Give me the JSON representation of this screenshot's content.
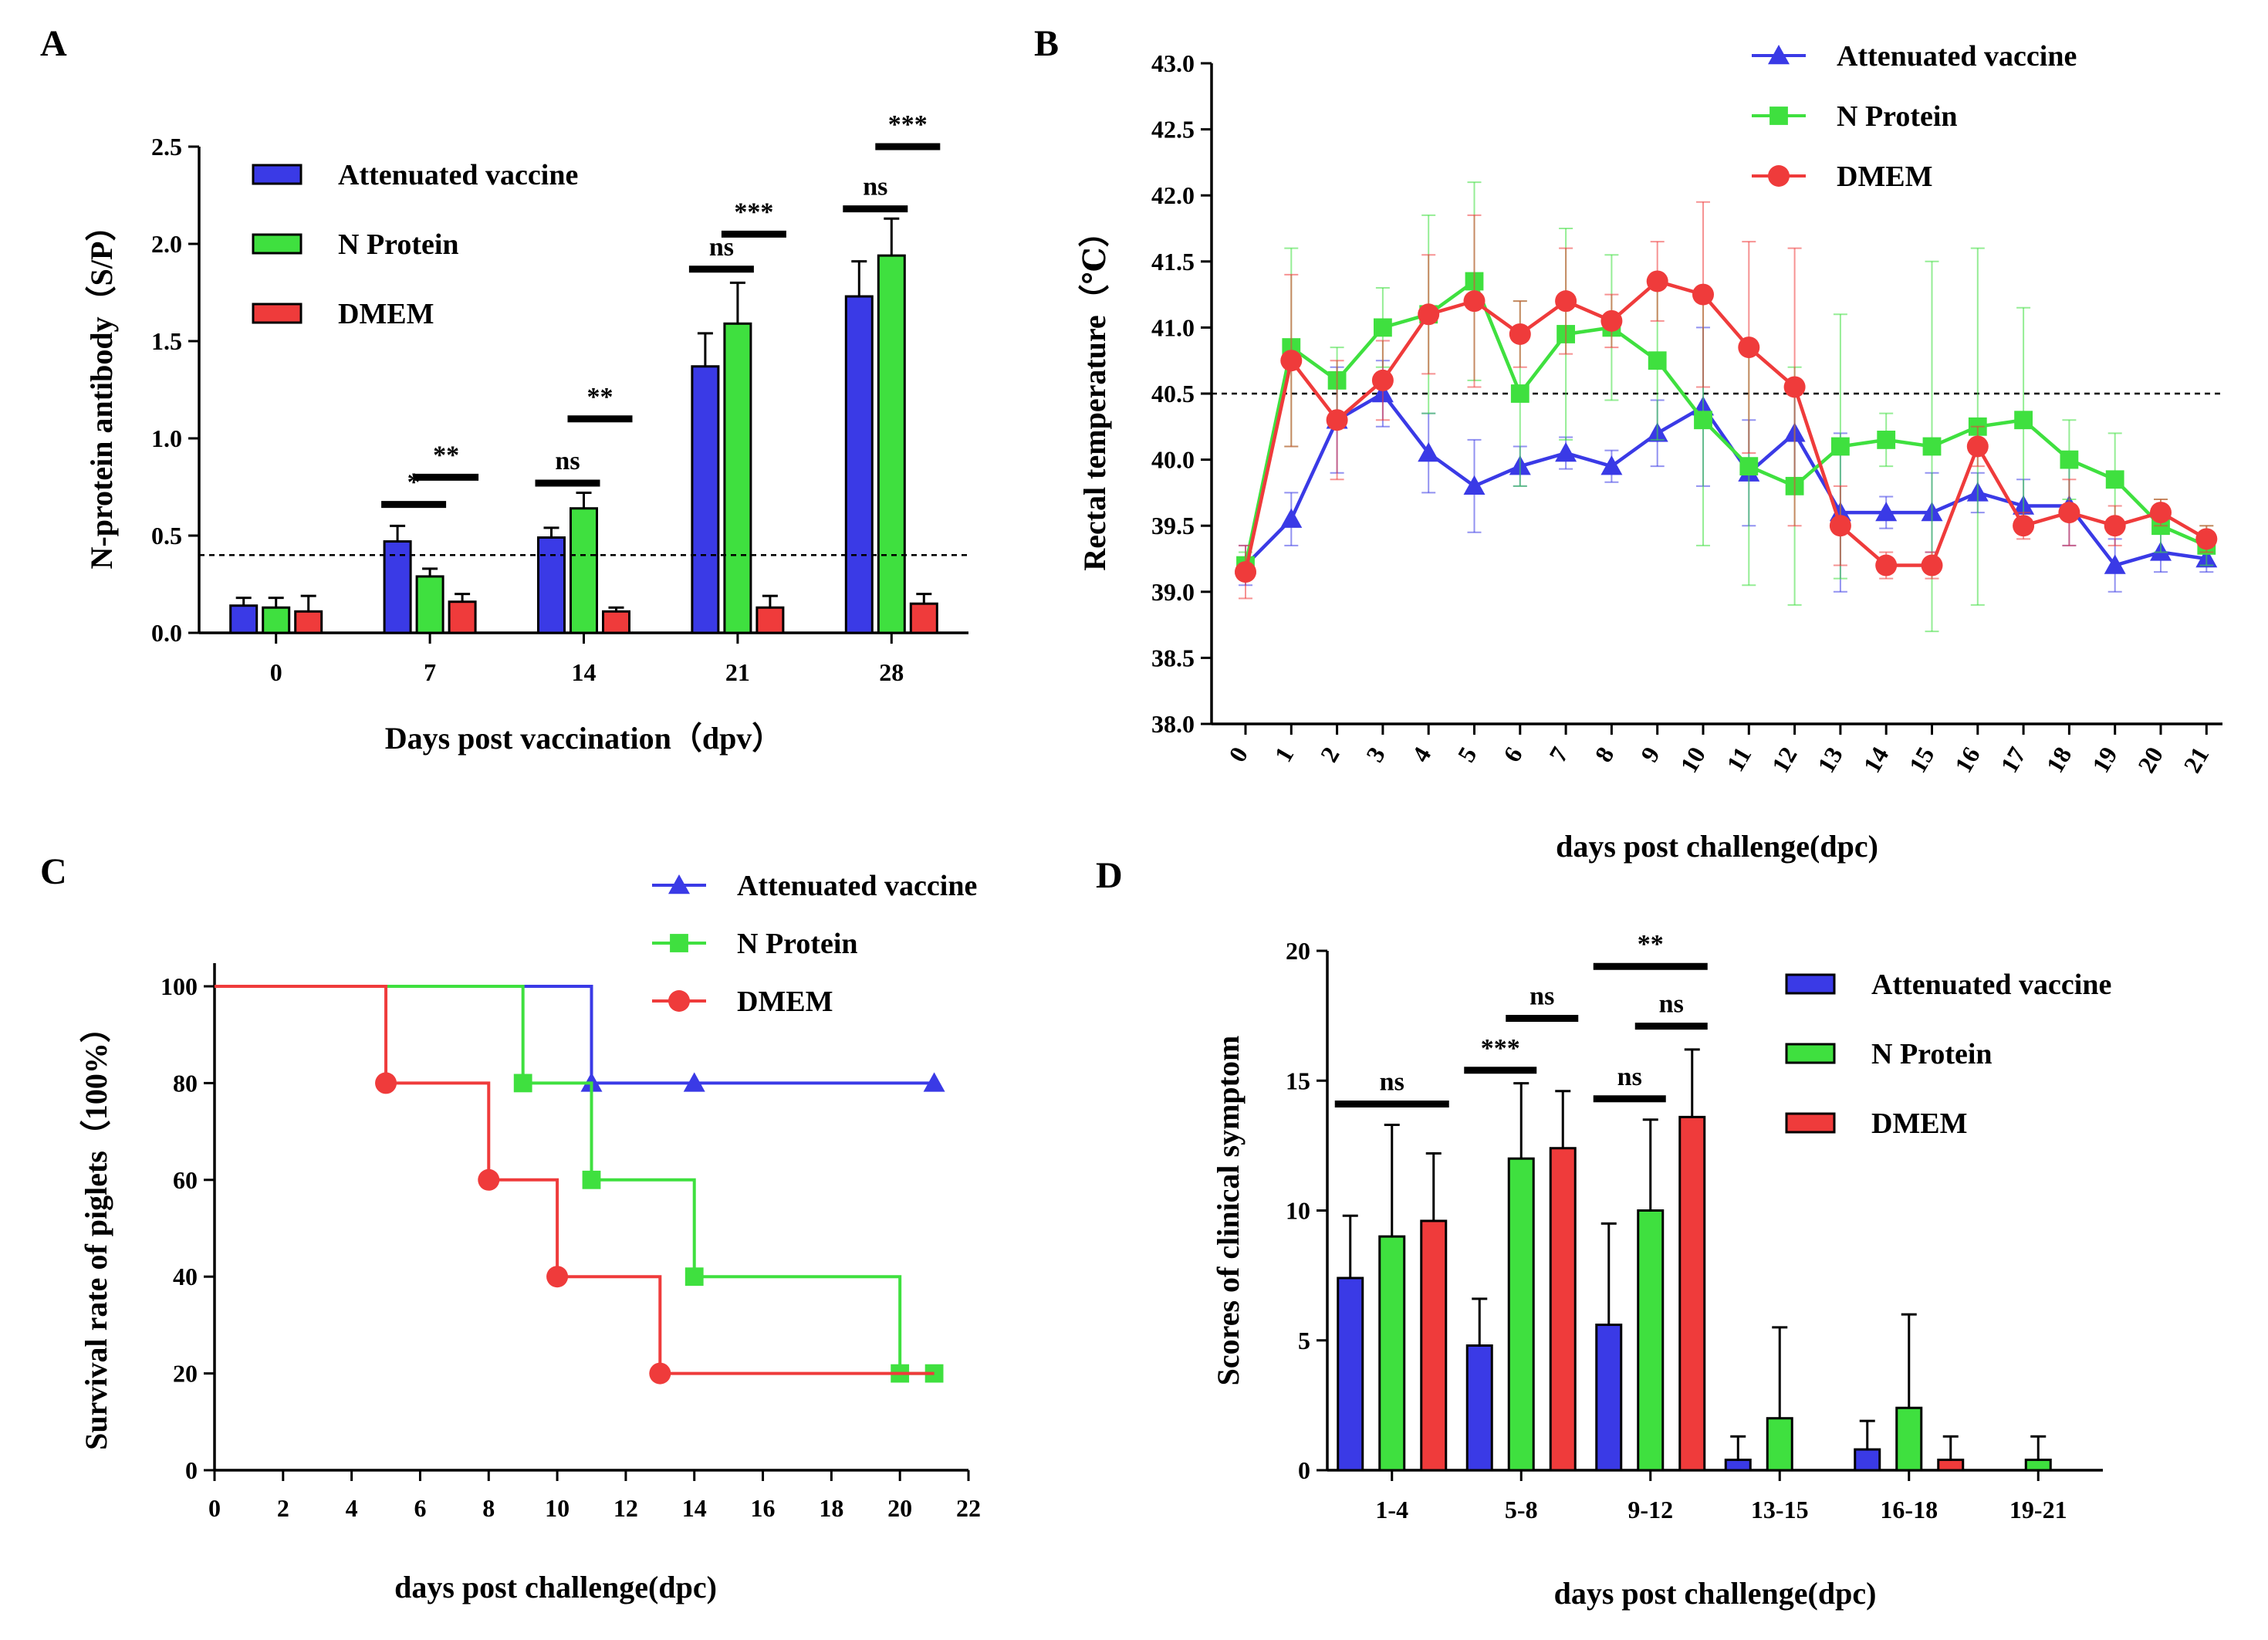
{
  "colors": {
    "vaccine": "#3a3ae6",
    "nprotein": "#3fe03f",
    "dmem": "#ef3b3b",
    "axis": "#000000"
  },
  "series_names": [
    "Attenuated vaccine",
    "N Protein",
    "DMEM"
  ],
  "chart_data": [
    {
      "id": "A",
      "panel_label": "A",
      "type": "bar",
      "title": "",
      "xlabel": "Days post vaccination（dpv）",
      "ylabel": "N-protein antibody（S/P）",
      "categories": [
        "0",
        "7",
        "14",
        "21",
        "28"
      ],
      "ylim": [
        0,
        2.5
      ],
      "yticks": [
        0.0,
        0.5,
        1.0,
        1.5,
        2.0,
        2.5
      ],
      "ytick_labels": [
        "0.0",
        "0.5",
        "1.0",
        "1.5",
        "2.0",
        "2.5"
      ],
      "threshold": 0.4,
      "legend_position": "top-left",
      "series": [
        {
          "name": "Attenuated vaccine",
          "values": [
            0.14,
            0.47,
            0.49,
            1.37,
            1.73
          ],
          "errors": [
            0.04,
            0.08,
            0.05,
            0.17,
            0.18
          ]
        },
        {
          "name": "N Protein",
          "values": [
            0.13,
            0.29,
            0.64,
            1.59,
            1.94
          ],
          "errors": [
            0.05,
            0.04,
            0.08,
            0.21,
            0.19
          ]
        },
        {
          "name": "DMEM",
          "values": [
            0.11,
            0.16,
            0.11,
            0.13,
            0.15
          ],
          "errors": [
            0.08,
            0.04,
            0.02,
            0.06,
            0.05
          ]
        }
      ],
      "annotations": [
        {
          "text": "*",
          "category": 1,
          "pair": [
            0,
            1
          ],
          "y": 0.66
        },
        {
          "text": "**",
          "category": 1,
          "pair": [
            1,
            2
          ],
          "y": 0.8
        },
        {
          "text": "ns",
          "category": 2,
          "pair": [
            0,
            1
          ],
          "y": 0.77
        },
        {
          "text": "**",
          "category": 2,
          "pair": [
            1,
            2
          ],
          "y": 1.1
        },
        {
          "text": "ns",
          "category": 3,
          "pair": [
            0,
            1
          ],
          "y": 1.87
        },
        {
          "text": "***",
          "category": 3,
          "pair": [
            1,
            2
          ],
          "y": 2.05
        },
        {
          "text": "ns",
          "category": 4,
          "pair": [
            0,
            1
          ],
          "y": 2.18
        },
        {
          "text": "***",
          "category": 4,
          "pair": [
            1,
            2
          ],
          "y": 2.5
        }
      ]
    },
    {
      "id": "B",
      "panel_label": "B",
      "type": "line",
      "title": "",
      "xlabel": "days post challenge(dpc)",
      "ylabel": "Rectal temperature（℃）",
      "x": [
        0,
        1,
        2,
        3,
        4,
        5,
        6,
        7,
        8,
        9,
        10,
        11,
        12,
        13,
        14,
        15,
        16,
        17,
        18,
        19,
        20,
        21
      ],
      "xtick_labels": [
        "0",
        "1",
        "2",
        "3",
        "4",
        "5",
        "6",
        "7",
        "8",
        "9",
        "10",
        "11",
        "12",
        "13",
        "14",
        "15",
        "16",
        "17",
        "18",
        "19",
        "20",
        "21"
      ],
      "ylim": [
        38.0,
        43.0
      ],
      "yticks": [
        38.0,
        38.5,
        39.0,
        39.5,
        40.0,
        40.5,
        41.0,
        41.5,
        42.0,
        42.5,
        43.0
      ],
      "ytick_labels": [
        "38.0",
        "38.5",
        "39.0",
        "39.5",
        "40.0",
        "40.5",
        "41.0",
        "41.5",
        "42.0",
        "42.5",
        "43.0"
      ],
      "threshold": 40.5,
      "legend_position": "top-right",
      "series": [
        {
          "name": "Attenuated vaccine",
          "marker": "triangle",
          "values": [
            39.2,
            39.55,
            40.3,
            40.5,
            40.05,
            39.8,
            39.95,
            40.05,
            39.95,
            40.2,
            40.4,
            39.9,
            40.2,
            39.6,
            39.6,
            39.6,
            39.75,
            39.65,
            39.65,
            39.2,
            39.3,
            39.25
          ],
          "errors": [
            0.15,
            0.2,
            0.4,
            0.25,
            0.3,
            0.35,
            0.15,
            0.12,
            0.12,
            0.25,
            0.6,
            0.4,
            0.35,
            0.6,
            0.12,
            0.3,
            0.15,
            0.2,
            0.3,
            0.2,
            0.15,
            0.1
          ]
        },
        {
          "name": "N Protein",
          "marker": "square",
          "values": [
            39.2,
            40.85,
            40.6,
            41.0,
            41.1,
            41.35,
            40.5,
            40.95,
            41.0,
            40.75,
            40.3,
            39.95,
            39.8,
            40.1,
            40.15,
            40.1,
            40.25,
            40.3,
            40.0,
            39.85,
            39.5,
            39.35
          ],
          "errors": [
            0.1,
            0.75,
            0.25,
            0.3,
            0.75,
            0.75,
            0.7,
            0.8,
            0.55,
            0.6,
            0.95,
            0.9,
            0.9,
            1.0,
            0.2,
            1.4,
            1.35,
            0.85,
            0.3,
            0.35,
            0.2,
            0.15
          ]
        },
        {
          "name": "DMEM",
          "marker": "circle",
          "values": [
            39.15,
            40.75,
            40.3,
            40.6,
            41.1,
            41.2,
            40.95,
            41.2,
            41.05,
            41.35,
            41.25,
            40.85,
            40.55,
            39.5,
            39.2,
            39.2,
            40.1,
            39.5,
            39.6,
            39.5,
            39.6,
            39.4
          ],
          "errors": [
            0.2,
            0.65,
            0.45,
            0.3,
            0.45,
            0.65,
            0.25,
            0.4,
            0.2,
            0.3,
            0.7,
            0.8,
            1.05,
            0.3,
            0.1,
            0.1,
            0.15,
            0.1,
            0.25,
            0.15,
            0.1,
            0.1
          ]
        }
      ]
    },
    {
      "id": "C",
      "panel_label": "C",
      "type": "line",
      "subtype": "survival-step",
      "title": "",
      "xlabel": "days post challenge(dpc)",
      "ylabel": "Survival rate of piglets（100%）",
      "xlim": [
        0,
        22
      ],
      "xticks": [
        0,
        2,
        4,
        6,
        8,
        10,
        12,
        14,
        16,
        18,
        20,
        22
      ],
      "xtick_labels": [
        "0",
        "2",
        "4",
        "6",
        "8",
        "10",
        "12",
        "14",
        "16",
        "18",
        "20",
        "22"
      ],
      "ylim": [
        0,
        100
      ],
      "yticks": [
        0,
        20,
        40,
        60,
        80,
        100
      ],
      "ytick_labels": [
        "0",
        "20",
        "40",
        "60",
        "80",
        "100"
      ],
      "legend_position": "top-right",
      "series": [
        {
          "name": "Attenuated vaccine",
          "marker": "triangle",
          "steps": [
            [
              0,
              100
            ],
            [
              11,
              80
            ],
            [
              21,
              80
            ]
          ],
          "markers": [
            [
              11,
              80
            ],
            [
              14,
              80
            ],
            [
              21,
              80
            ]
          ]
        },
        {
          "name": "N Protein",
          "marker": "square",
          "steps": [
            [
              0,
              100
            ],
            [
              9,
              80
            ],
            [
              11,
              60
            ],
            [
              14,
              40
            ],
            [
              20,
              20
            ],
            [
              21,
              20
            ]
          ],
          "markers": [
            [
              9,
              80
            ],
            [
              11,
              60
            ],
            [
              14,
              40
            ],
            [
              20,
              20
            ],
            [
              21,
              20
            ]
          ]
        },
        {
          "name": "DMEM",
          "marker": "circle",
          "steps": [
            [
              0,
              100
            ],
            [
              5,
              80
            ],
            [
              8,
              60
            ],
            [
              10,
              40
            ],
            [
              13,
              20
            ],
            [
              21,
              20
            ]
          ],
          "markers": [
            [
              5,
              80
            ],
            [
              8,
              60
            ],
            [
              10,
              40
            ],
            [
              13,
              20
            ]
          ]
        }
      ]
    },
    {
      "id": "D",
      "panel_label": "D",
      "type": "bar",
      "title": "",
      "xlabel": "days post challenge(dpc)",
      "ylabel": "Scores of clinical symptom",
      "categories": [
        "1-4",
        "5-8",
        "9-12",
        "13-15",
        "16-18",
        "19-21"
      ],
      "ylim": [
        0,
        20
      ],
      "yticks": [
        0,
        5,
        10,
        15,
        20
      ],
      "ytick_labels": [
        "0",
        "5",
        "10",
        "15",
        "20"
      ],
      "legend_position": "top-right",
      "series": [
        {
          "name": "Attenuated vaccine",
          "values": [
            7.4,
            4.8,
            5.6,
            0.4,
            0.8,
            0.0
          ],
          "errors": [
            2.4,
            1.8,
            3.9,
            0.9,
            1.1,
            0.0
          ]
        },
        {
          "name": "N Protein",
          "values": [
            9.0,
            12.0,
            10.0,
            2.0,
            2.4,
            0.4
          ],
          "errors": [
            4.3,
            2.9,
            3.5,
            3.5,
            3.6,
            0.9
          ]
        },
        {
          "name": "DMEM",
          "values": [
            9.6,
            12.4,
            13.6,
            0.0,
            0.4,
            0.0
          ],
          "errors": [
            2.6,
            2.2,
            2.6,
            0.0,
            0.9,
            0.0
          ]
        }
      ],
      "annotations": [
        {
          "text": "ns",
          "category": 0,
          "pair": [
            0,
            2
          ],
          "y": 14.1
        },
        {
          "text": "***",
          "category": 1,
          "pair": [
            0,
            1
          ],
          "y": 15.4
        },
        {
          "text": "ns",
          "category": 1,
          "pair": [
            1,
            2
          ],
          "y": 17.4
        },
        {
          "text": "**",
          "category": 2,
          "pair": [
            0,
            2
          ],
          "y": 19.4
        },
        {
          "text": "ns",
          "category": 2,
          "pair": [
            0,
            1
          ],
          "y": 14.3
        },
        {
          "text": "ns",
          "category": 2,
          "pair": [
            1,
            2
          ],
          "y": 17.1
        }
      ]
    }
  ]
}
